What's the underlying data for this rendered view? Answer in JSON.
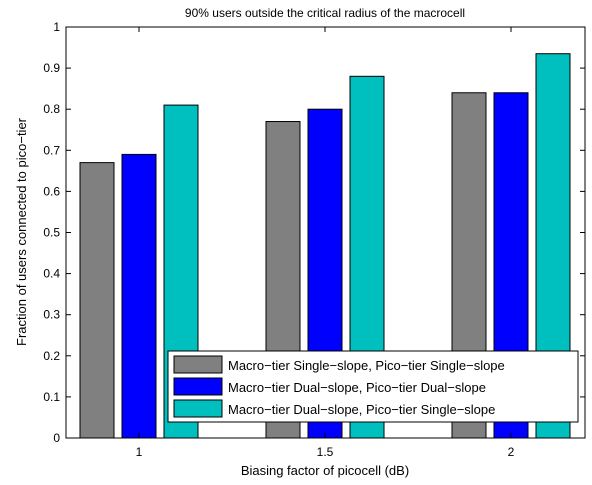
{
  "chart_data": {
    "type": "bar",
    "title": "90% users outside the critical radius of the macrocell",
    "xlabel": "Biasing factor of picocell (dB)",
    "ylabel": "Fraction of users connected to pico−tier",
    "categories": [
      "1",
      "1.5",
      "2"
    ],
    "ylim": [
      0,
      1
    ],
    "yticks": [
      "0",
      "0.1",
      "0.2",
      "0.3",
      "0.4",
      "0.5",
      "0.6",
      "0.7",
      "0.8",
      "0.9",
      "1"
    ],
    "grid": false,
    "legend_position": "bottom-right",
    "series": [
      {
        "name": "Macro−tier Single−slope, Pico−tier Single−slope",
        "color": "#808080",
        "values": [
          0.67,
          0.77,
          0.84
        ]
      },
      {
        "name": "Macro−tier Dual−slope, Pico−tier Dual−slope",
        "color": "#0000ff",
        "values": [
          0.69,
          0.8,
          0.84
        ]
      },
      {
        "name": "Macro−tier Dual−slope, Pico−tier Single−slope",
        "color": "#00bfbf",
        "values": [
          0.81,
          0.88,
          0.935
        ]
      }
    ]
  }
}
